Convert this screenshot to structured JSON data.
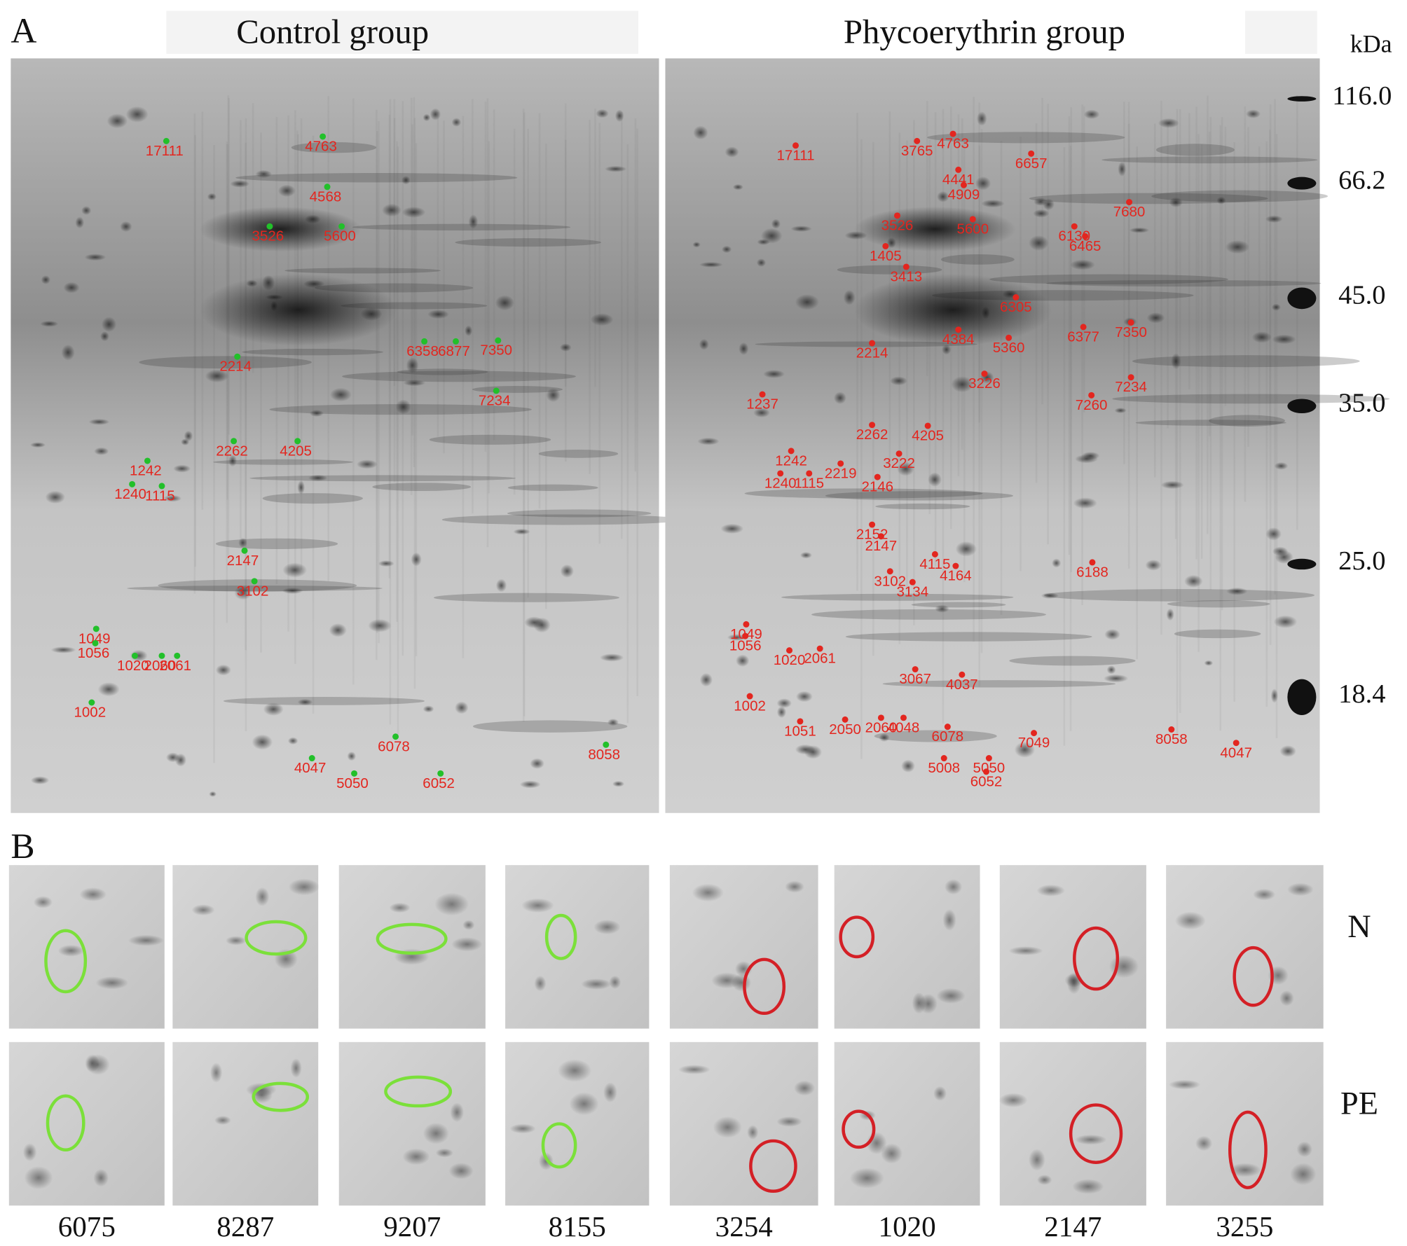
{
  "panel_a": {
    "label": "A",
    "gels": [
      {
        "title": "Control group",
        "spots": [
          "17111",
          "4763",
          "4568",
          "3526",
          "5600",
          "2214",
          "6358",
          "6877",
          "7350",
          "7234",
          "2262",
          "4205",
          "1242",
          "1240",
          "1115",
          "2147",
          "3102",
          "1049",
          "1056",
          "1020",
          "2060",
          "2061",
          "1002",
          "6078",
          "4047",
          "5050",
          "6052",
          "8058"
        ]
      },
      {
        "title": "Phycoerythrin group",
        "spots": [
          "17111",
          "3765",
          "4763",
          "6657",
          "4441",
          "4909",
          "7680",
          "3526",
          "5600",
          "6130",
          "6465",
          "1405",
          "3413",
          "6305",
          "4384",
          "5360",
          "6377",
          "7350",
          "2214",
          "3226",
          "7234",
          "7260",
          "1237",
          "2262",
          "4205",
          "3222",
          "1242",
          "1240",
          "1115",
          "2219",
          "2146",
          "2152",
          "2147",
          "4115",
          "4164",
          "6188",
          "3102",
          "3134",
          "1049",
          "1056",
          "1020",
          "2061",
          "3067",
          "4037",
          "1002",
          "1051",
          "2050",
          "2060",
          "4048",
          "6078",
          "7049",
          "8058",
          "4047",
          "5008",
          "5050",
          "6052"
        ]
      }
    ],
    "mw_axis": {
      "unit": "kDa",
      "markers": [
        "116.0",
        "66.2",
        "45.0",
        "35.0",
        "25.0",
        "18.4"
      ]
    }
  },
  "panel_b": {
    "label": "B",
    "rows": [
      "N",
      "PE"
    ],
    "columns": [
      "6075",
      "8287",
      "9207",
      "8155",
      "3254",
      "1020",
      "2147",
      "3255"
    ]
  }
}
